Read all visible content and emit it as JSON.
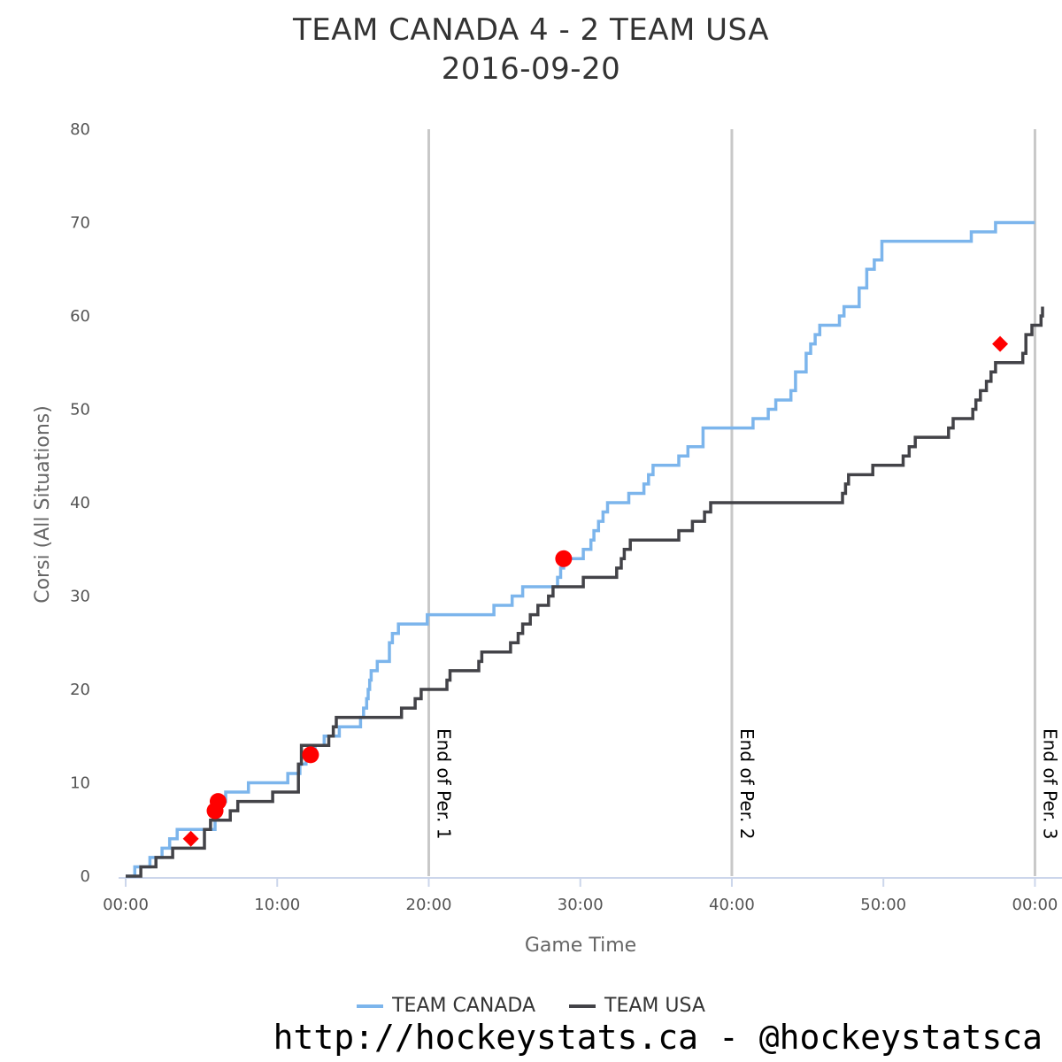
{
  "chart_data": {
    "type": "line",
    "title": "TEAM CANADA 4 - 2 TEAM USA",
    "subtitle": "2016-09-20",
    "xlabel": "Game Time",
    "ylabel": "Corsi (All Situations)",
    "x_unit": "minutes",
    "xlim": [
      0,
      60.5
    ],
    "ylim": [
      0,
      80
    ],
    "x_ticks": [
      0,
      10,
      20,
      30,
      40,
      50,
      60
    ],
    "x_tick_labels": [
      "00:00",
      "10:00",
      "20:00",
      "30:00",
      "40:00",
      "50:00",
      "00:00"
    ],
    "y_ticks": [
      0,
      10,
      20,
      30,
      40,
      50,
      60,
      70,
      80
    ],
    "y_tick_labels": [
      "0",
      "10",
      "20",
      "30",
      "40",
      "50",
      "60",
      "70",
      "80"
    ],
    "grid": false,
    "legend_position": "bottom-center",
    "plot_lines": [
      {
        "x": 20,
        "label": "End of Per. 1"
      },
      {
        "x": 40,
        "label": "End of Per. 2"
      },
      {
        "x": 60,
        "label": "End of Per. 3"
      }
    ],
    "series": [
      {
        "name": "TEAM CANADA",
        "color": "#7cb5ec",
        "points": [
          [
            0,
            0
          ],
          [
            0.6,
            1
          ],
          [
            1.6,
            2
          ],
          [
            2.4,
            3
          ],
          [
            2.9,
            4
          ],
          [
            3.4,
            5
          ],
          [
            5.9,
            6
          ],
          [
            6.1,
            7
          ],
          [
            6.3,
            8
          ],
          [
            6.6,
            9
          ],
          [
            8.1,
            10
          ],
          [
            10.7,
            11
          ],
          [
            11.5,
            12
          ],
          [
            11.9,
            13
          ],
          [
            12.5,
            14
          ],
          [
            13.1,
            15
          ],
          [
            14.1,
            16
          ],
          [
            15.5,
            17
          ],
          [
            15.7,
            18
          ],
          [
            15.9,
            19
          ],
          [
            16,
            20
          ],
          [
            16.1,
            21
          ],
          [
            16.2,
            22
          ],
          [
            16.6,
            23
          ],
          [
            17.4,
            25
          ],
          [
            17.6,
            26
          ],
          [
            18,
            27
          ],
          [
            19.9,
            28
          ],
          [
            24.3,
            29
          ],
          [
            25.5,
            30
          ],
          [
            26.2,
            31
          ],
          [
            28.5,
            32
          ],
          [
            28.7,
            33
          ],
          [
            28.9,
            34
          ],
          [
            30.2,
            35
          ],
          [
            30.7,
            36
          ],
          [
            30.9,
            37
          ],
          [
            31.2,
            38
          ],
          [
            31.5,
            39
          ],
          [
            31.8,
            40
          ],
          [
            33.2,
            41
          ],
          [
            34.2,
            42
          ],
          [
            34.5,
            43
          ],
          [
            34.8,
            44
          ],
          [
            36.5,
            45
          ],
          [
            37.1,
            46
          ],
          [
            38.1,
            48
          ],
          [
            41.4,
            49
          ],
          [
            42.4,
            50
          ],
          [
            42.9,
            51
          ],
          [
            43.9,
            52
          ],
          [
            44.2,
            54
          ],
          [
            44.9,
            56
          ],
          [
            45.2,
            57
          ],
          [
            45.5,
            58
          ],
          [
            45.8,
            59
          ],
          [
            47.1,
            60
          ],
          [
            47.4,
            61
          ],
          [
            48.4,
            63
          ],
          [
            48.9,
            65
          ],
          [
            49.4,
            66
          ],
          [
            49.9,
            68
          ],
          [
            55.8,
            69
          ],
          [
            57.4,
            70
          ],
          [
            60,
            70
          ]
        ]
      },
      {
        "name": "TEAM USA",
        "color": "#434348",
        "points": [
          [
            0,
            0
          ],
          [
            1,
            1
          ],
          [
            2,
            2
          ],
          [
            3.1,
            3
          ],
          [
            5.2,
            5
          ],
          [
            5.6,
            6
          ],
          [
            6.9,
            7
          ],
          [
            7.4,
            8
          ],
          [
            9.7,
            9
          ],
          [
            11.4,
            12
          ],
          [
            11.6,
            14
          ],
          [
            13.4,
            15
          ],
          [
            13.7,
            16
          ],
          [
            13.9,
            17
          ],
          [
            18.2,
            18
          ],
          [
            19.1,
            19
          ],
          [
            19.5,
            20
          ],
          [
            21.2,
            21
          ],
          [
            21.4,
            22
          ],
          [
            23.3,
            23
          ],
          [
            23.5,
            24
          ],
          [
            25.4,
            25
          ],
          [
            25.9,
            26
          ],
          [
            26.2,
            27
          ],
          [
            26.7,
            28
          ],
          [
            27.2,
            29
          ],
          [
            27.9,
            30
          ],
          [
            28.2,
            31
          ],
          [
            30.2,
            32
          ],
          [
            32.4,
            33
          ],
          [
            32.7,
            34
          ],
          [
            32.9,
            35
          ],
          [
            33.3,
            36
          ],
          [
            36.5,
            37
          ],
          [
            37.4,
            38
          ],
          [
            38.2,
            39
          ],
          [
            38.6,
            40
          ],
          [
            47.3,
            41
          ],
          [
            47.5,
            42
          ],
          [
            47.7,
            43
          ],
          [
            49.3,
            44
          ],
          [
            51.3,
            45
          ],
          [
            51.7,
            46
          ],
          [
            52.1,
            47
          ],
          [
            54.3,
            48
          ],
          [
            54.6,
            49
          ],
          [
            55.9,
            50
          ],
          [
            56.1,
            51
          ],
          [
            56.4,
            52
          ],
          [
            56.8,
            53
          ],
          [
            57.1,
            54
          ],
          [
            57.4,
            55
          ],
          [
            59.2,
            56
          ],
          [
            59.4,
            58
          ],
          [
            59.8,
            59
          ],
          [
            60.4,
            60
          ],
          [
            60.5,
            61
          ]
        ]
      }
    ],
    "goal_markers": [
      {
        "team": "TEAM CANADA",
        "x": 5.9,
        "y": 7,
        "shape": "circle",
        "color": "#ff0000"
      },
      {
        "team": "TEAM CANADA",
        "x": 6.1,
        "y": 8,
        "shape": "circle",
        "color": "#ff0000"
      },
      {
        "team": "TEAM CANADA",
        "x": 12.2,
        "y": 13,
        "shape": "circle",
        "color": "#ff0000"
      },
      {
        "team": "TEAM CANADA",
        "x": 28.9,
        "y": 34,
        "shape": "circle",
        "color": "#ff0000"
      },
      {
        "team": "TEAM USA",
        "x": 4.3,
        "y": 4,
        "shape": "diamond",
        "color": "#ff0000"
      },
      {
        "team": "TEAM USA",
        "x": 57.7,
        "y": 57,
        "shape": "diamond",
        "color": "#ff0000"
      }
    ]
  },
  "credit": "http://hockeystats.ca - @hockeystatsca"
}
